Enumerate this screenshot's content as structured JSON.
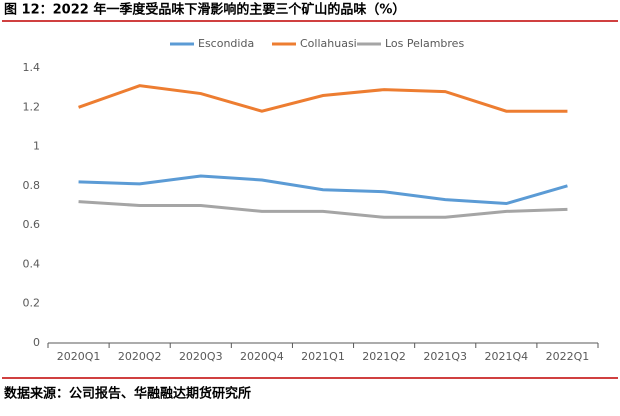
{
  "chart_data": {
    "type": "line",
    "title": "图 12：2022 年一季度受品味下滑影响的主要三个矿山的品味（%）",
    "source": "数据来源：公司报告、华融融达期货研究所",
    "categories": [
      "2020Q1",
      "2020Q2",
      "2020Q3",
      "2020Q4",
      "2021Q1",
      "2021Q2",
      "2021Q3",
      "2021Q4",
      "2022Q1"
    ],
    "series": [
      {
        "name": "Escondida",
        "color": "#5b9bd5",
        "values": [
          0.82,
          0.81,
          0.85,
          0.83,
          0.78,
          0.77,
          0.73,
          0.71,
          0.8
        ]
      },
      {
        "name": "Collahuasi",
        "color": "#ed7d31",
        "values": [
          1.2,
          1.31,
          1.27,
          1.18,
          1.26,
          1.29,
          1.28,
          1.18,
          1.18
        ]
      },
      {
        "name": "Los Pelambres",
        "color": "#a5a5a5",
        "values": [
          0.72,
          0.7,
          0.7,
          0.67,
          0.67,
          0.64,
          0.64,
          0.67,
          0.68
        ]
      }
    ],
    "ylim": [
      0,
      1.4
    ],
    "yticks": [
      0,
      0.2,
      0.4,
      0.6,
      0.8,
      1,
      1.2,
      1.4
    ],
    "grid": false
  }
}
